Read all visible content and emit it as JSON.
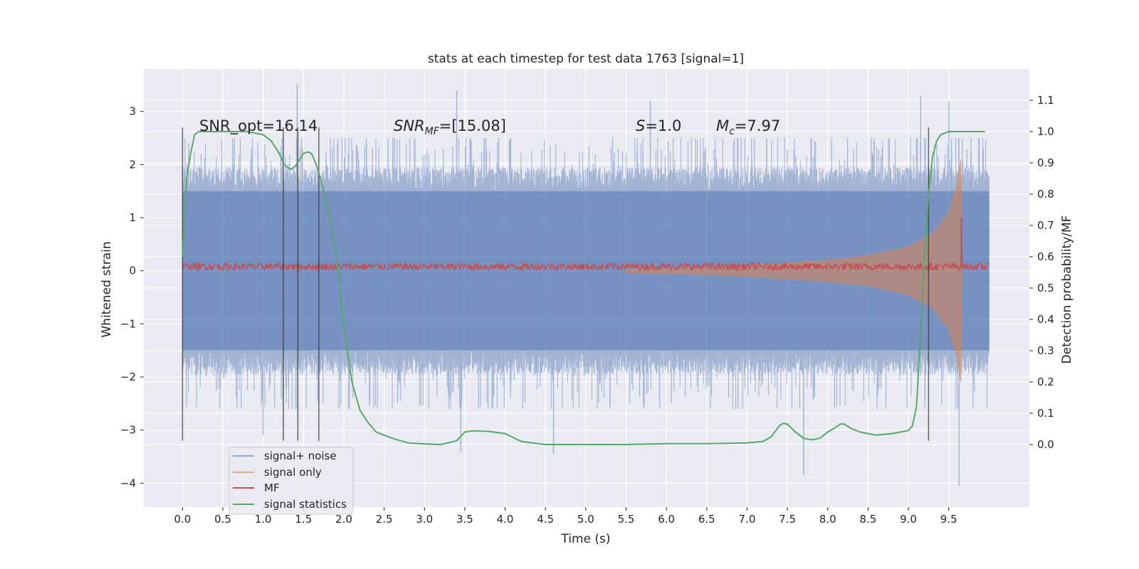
{
  "chart_data": {
    "type": "line",
    "title": "stats at each timestep for test data 1763 [signal=1]",
    "xlabel": "Time (s)",
    "ylabel_left": "Whitened strain",
    "ylabel_right": "Detection probability/MF",
    "xlim": [
      -0.48,
      10.5
    ],
    "ylim_left": [
      -4.45,
      3.8
    ],
    "ylim_right": [
      -0.2,
      1.2
    ],
    "x_ticks": [
      0.0,
      0.5,
      1.0,
      1.5,
      2.0,
      2.5,
      3.0,
      3.5,
      4.0,
      4.5,
      5.0,
      5.5,
      6.0,
      6.5,
      7.0,
      7.5,
      8.0,
      8.5,
      9.0,
      9.5
    ],
    "x_tick_labels": [
      "0.0",
      "0.5",
      "1.0",
      "1.5",
      "2.0",
      "2.5",
      "3.0",
      "3.5",
      "4.0",
      "4.5",
      "5.0",
      "5.5",
      "6.0",
      "6.5",
      "7.0",
      "7.5",
      "8.0",
      "8.5",
      "9.0",
      "9.5"
    ],
    "y_ticks_left": [
      -4,
      -3,
      -2,
      -1,
      0,
      1,
      2,
      3
    ],
    "y_tick_labels_left": [
      "−4",
      "−3",
      "−2",
      "−1",
      "0",
      "1",
      "2",
      "3"
    ],
    "y_ticks_right": [
      0.0,
      0.1,
      0.2,
      0.3,
      0.4,
      0.5,
      0.6,
      0.7,
      0.8,
      0.9,
      1.0,
      1.1
    ],
    "y_tick_labels_right": [
      "0.0",
      "0.1",
      "0.2",
      "0.3",
      "0.4",
      "0.5",
      "0.6",
      "0.7",
      "0.8",
      "0.9",
      "1.0",
      "1.1"
    ],
    "grid": true,
    "legend_placement": "lower-left",
    "annotations": {
      "snr_opt": "SNR_opt=16.14",
      "snr_mf_base": "SNR",
      "snr_mf_sub": "MF",
      "snr_mf_value": "=[15.08]",
      "s_symbol": "S",
      "s_value": "=1.0",
      "mc_symbol": "M",
      "mc_sub": "c",
      "mc_value": "=7.97"
    },
    "vertical_markers_x": [
      0.0,
      1.25,
      1.43,
      1.69,
      9.25
    ],
    "vertical_marker_range": [
      -3.2,
      2.7
    ],
    "series": [
      {
        "name": "signal+ noise",
        "color": "#4c72b0",
        "axis": "left",
        "x_range": [
          0.0,
          10.0
        ],
        "typical_band": [
          -1.5,
          1.5
        ],
        "peaks": [
          [
            1.42,
            3.5
          ],
          [
            3.4,
            3.4
          ],
          [
            5.8,
            3.2
          ],
          [
            9.15,
            3.3
          ],
          [
            9.5,
            3.2
          ]
        ],
        "troughs": [
          [
            9.63,
            -4.05
          ],
          [
            7.7,
            -3.85
          ],
          [
            4.6,
            -3.45
          ],
          [
            3.45,
            -3.4
          ],
          [
            1.0,
            -3.1
          ]
        ]
      },
      {
        "name": "signal only",
        "color": "#dd8452",
        "axis": "left",
        "envelope": [
          [
            5.5,
            0.03
          ],
          [
            6.0,
            0.05
          ],
          [
            7.0,
            0.1
          ],
          [
            8.0,
            0.2
          ],
          [
            8.5,
            0.28
          ],
          [
            9.0,
            0.45
          ],
          [
            9.3,
            0.7
          ],
          [
            9.5,
            1.1
          ],
          [
            9.6,
            1.6
          ],
          [
            9.65,
            2.1
          ],
          [
            9.67,
            0.0
          ]
        ]
      },
      {
        "name": "MF",
        "color": "#c44e52",
        "axis": "left",
        "x_range": [
          0.0,
          10.0
        ],
        "baseline": 0.08,
        "noise_amplitude": 0.07,
        "spike": [
          9.66,
          1.0
        ]
      },
      {
        "name": "signal statistics",
        "color": "#55a868",
        "axis": "right",
        "x": [
          0.0,
          0.05,
          0.1,
          0.15,
          0.2,
          0.3,
          0.5,
          0.8,
          1.0,
          1.1,
          1.2,
          1.25,
          1.3,
          1.35,
          1.4,
          1.45,
          1.5,
          1.55,
          1.6,
          1.65,
          1.7,
          1.8,
          1.9,
          1.95,
          2.0,
          2.1,
          2.2,
          2.3,
          2.4,
          2.5,
          2.6,
          2.8,
          3.0,
          3.2,
          3.4,
          3.5,
          3.6,
          3.8,
          4.0,
          4.2,
          4.5,
          5.0,
          5.5,
          6.0,
          6.5,
          7.0,
          7.2,
          7.3,
          7.4,
          7.45,
          7.5,
          7.6,
          7.7,
          7.8,
          7.9,
          8.0,
          8.1,
          8.15,
          8.2,
          8.3,
          8.4,
          8.5,
          8.6,
          8.8,
          9.0,
          9.05,
          9.1,
          9.15,
          9.2,
          9.25,
          9.3,
          9.35,
          9.4,
          9.5,
          9.6,
          9.7,
          9.8,
          9.9,
          9.95
        ],
        "y": [
          0.6,
          0.85,
          0.93,
          0.99,
          1.0,
          1.0,
          1.0,
          1.0,
          0.99,
          0.97,
          0.93,
          0.9,
          0.885,
          0.88,
          0.89,
          0.91,
          0.93,
          0.935,
          0.93,
          0.9,
          0.86,
          0.76,
          0.62,
          0.5,
          0.38,
          0.2,
          0.11,
          0.07,
          0.04,
          0.03,
          0.02,
          0.005,
          0.002,
          0.0,
          0.012,
          0.04,
          0.044,
          0.042,
          0.035,
          0.01,
          0.0,
          0.0,
          0.0,
          0.003,
          0.003,
          0.005,
          0.01,
          0.025,
          0.06,
          0.068,
          0.065,
          0.04,
          0.02,
          0.015,
          0.02,
          0.04,
          0.055,
          0.065,
          0.066,
          0.05,
          0.04,
          0.035,
          0.03,
          0.035,
          0.045,
          0.06,
          0.12,
          0.35,
          0.6,
          0.8,
          0.92,
          0.97,
          0.99,
          1.0,
          1.0,
          1.0,
          1.0,
          1.0,
          1.0
        ]
      }
    ]
  }
}
